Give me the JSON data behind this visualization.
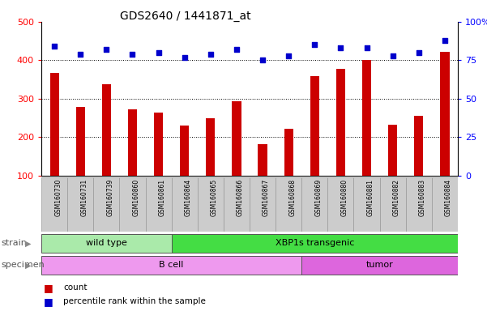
{
  "title": "GDS2640 / 1441871_at",
  "samples": [
    "GSM160730",
    "GSM160731",
    "GSM160739",
    "GSM160860",
    "GSM160861",
    "GSM160864",
    "GSM160865",
    "GSM160866",
    "GSM160867",
    "GSM160868",
    "GSM160869",
    "GSM160880",
    "GSM160881",
    "GSM160882",
    "GSM160883",
    "GSM160884"
  ],
  "counts": [
    368,
    278,
    338,
    273,
    265,
    230,
    250,
    293,
    183,
    222,
    358,
    378,
    400,
    233,
    255,
    422
  ],
  "percentiles": [
    84,
    79,
    82,
    79,
    80,
    77,
    79,
    82,
    75,
    78,
    85,
    83,
    83,
    78,
    80,
    88
  ],
  "ylim_left": [
    100,
    500
  ],
  "ylim_right": [
    0,
    100
  ],
  "yticks_left": [
    100,
    200,
    300,
    400,
    500
  ],
  "yticks_right": [
    0,
    25,
    50,
    75,
    100
  ],
  "yticklabels_right": [
    "0",
    "25",
    "50",
    "75",
    "100%"
  ],
  "bar_color": "#cc0000",
  "dot_color": "#0000cc",
  "strain_groups": [
    {
      "label": "wild type",
      "start": 0,
      "end": 5,
      "color": "#aaeaaa"
    },
    {
      "label": "XBP1s transgenic",
      "start": 5,
      "end": 16,
      "color": "#44dd44"
    }
  ],
  "specimen_groups": [
    {
      "label": "B cell",
      "start": 0,
      "end": 10,
      "color": "#ee99ee"
    },
    {
      "label": "tumor",
      "start": 10,
      "end": 16,
      "color": "#dd66dd"
    }
  ],
  "strain_label": "strain",
  "specimen_label": "specimen",
  "legend_count_label": "count",
  "legend_percentile_label": "percentile rank within the sample",
  "bg_color": "#ffffff",
  "tick_area_color": "#cccccc"
}
